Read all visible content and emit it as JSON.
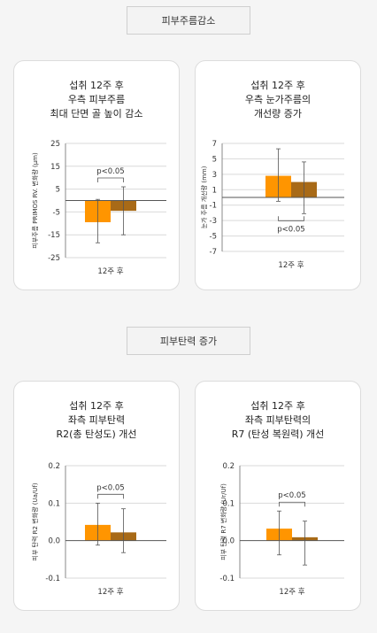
{
  "sections": [
    {
      "label": "피부주름감소"
    },
    {
      "label": "피부탄력 증가"
    }
  ],
  "colors": {
    "test": "#FF9500",
    "control": "#A86A17",
    "grid": "#d9d9d9",
    "zero": "#555555"
  },
  "chart_data": [
    {
      "type": "bar",
      "title_lines": [
        "섭취 12주 후",
        "우측 피부주름",
        "최대 단면 골 높이 감소"
      ],
      "ylabel": "피부주름 PRIMOS RV. 변화량 (μm)",
      "categories": [
        "12주 후"
      ],
      "ylim": [
        -25,
        25
      ],
      "yticks": [
        "25",
        "15",
        "5",
        "-5",
        "-15",
        "-25"
      ],
      "ytick_values": [
        25,
        15,
        5,
        -5,
        -15,
        -25
      ],
      "series": [
        {
          "values": [
            -9.5
          ],
          "error": [
            [
              -18.5,
              0.5
            ]
          ],
          "color": "#FF9500"
        },
        {
          "values": [
            -4.5
          ],
          "error": [
            [
              -15.0,
              6.0
            ]
          ],
          "color": "#A86A17"
        }
      ],
      "significance": {
        "label": "p<0.05",
        "position": "above"
      }
    },
    {
      "type": "bar",
      "title_lines": [
        "섭취 12주 후",
        "우측 눈가주름의",
        "개선량 증가"
      ],
      "ylabel": "눈가 주름 개선량 (mm)",
      "categories": [
        "12주 후"
      ],
      "ylim": [
        -7,
        7
      ],
      "yticks": [
        "7",
        "5",
        "3",
        "1",
        "-1",
        "-3",
        "-5",
        "-7"
      ],
      "ytick_values": [
        7,
        5,
        3,
        1,
        -1,
        -3,
        -5,
        -7
      ],
      "series": [
        {
          "values": [
            2.8
          ],
          "error": [
            [
              -0.5,
              6.3
            ]
          ],
          "color": "#FF9500"
        },
        {
          "values": [
            2.0
          ],
          "error": [
            [
              -2.1,
              4.6
            ]
          ],
          "color": "#A86A17"
        }
      ],
      "significance": {
        "label": "p<0.05",
        "position": "below"
      }
    },
    {
      "type": "bar",
      "title_lines": [
        "섭취 12주 후",
        "좌측 피부탄력",
        "R2(총 탄성도) 개선"
      ],
      "ylabel": "피부 탄력 R2 변화량 (Ua/Uf)",
      "categories": [
        "12주 후"
      ],
      "ylim": [
        -0.1,
        0.2
      ],
      "yticks": [
        "0.2",
        "0.1",
        "0.0",
        "-0.1"
      ],
      "ytick_values": [
        0.2,
        0.1,
        0.0,
        -0.1
      ],
      "series": [
        {
          "values": [
            0.042
          ],
          "error": [
            [
              -0.012,
              0.1
            ]
          ],
          "color": "#FF9500"
        },
        {
          "values": [
            0.022
          ],
          "error": [
            [
              -0.032,
              0.085
            ]
          ],
          "color": "#A86A17"
        }
      ],
      "significance": {
        "label": "p<0.05",
        "position": "above"
      }
    },
    {
      "type": "bar",
      "title_lines": [
        "섭취 12주 후",
        "좌측 피부탄력의",
        "R7 (탄성 복원력) 개선"
      ],
      "ylabel": "피부 탄력 R7 변화량 (Ur/Uf)",
      "categories": [
        "12주 후"
      ],
      "ylim": [
        -0.1,
        0.2
      ],
      "yticks": [
        "0.2",
        "0.1",
        "0.0",
        "-0.1"
      ],
      "ytick_values": [
        0.2,
        0.1,
        0.0,
        -0.1
      ],
      "series": [
        {
          "values": [
            0.032
          ],
          "error": [
            [
              -0.038,
              0.079
            ]
          ],
          "color": "#FF9500"
        },
        {
          "values": [
            0.009
          ],
          "error": [
            [
              -0.065,
              0.052
            ]
          ],
          "color": "#A86A17"
        }
      ],
      "significance": {
        "label": "p<0.05",
        "position": "above"
      }
    }
  ]
}
